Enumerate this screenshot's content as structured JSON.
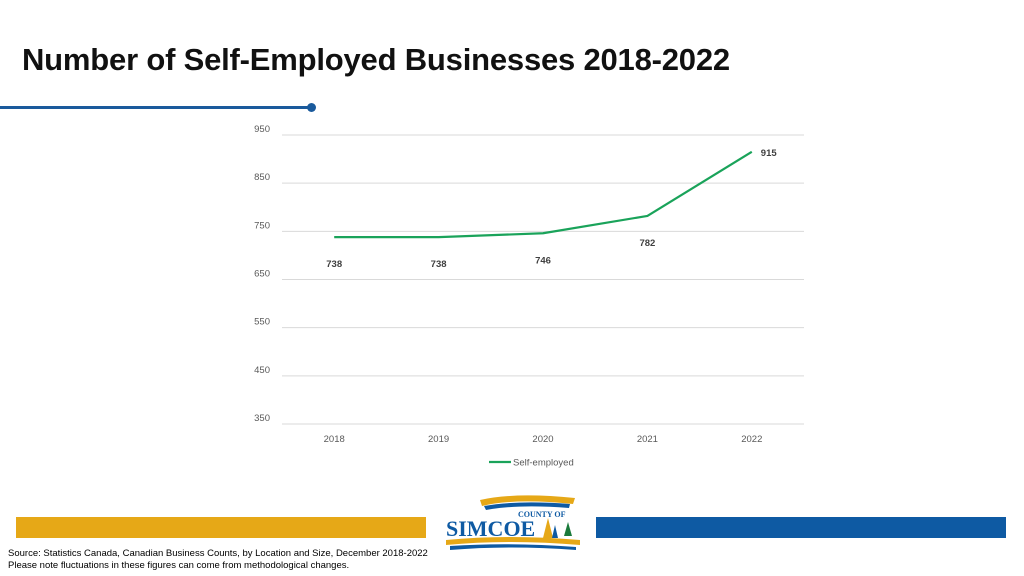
{
  "title": "Number of Self-Employed Businesses 2018-2022",
  "colors": {
    "accent_blue": "#1a5a9c",
    "footer_gold": "#e6a817",
    "footer_blue": "#0e5aa3",
    "series_green": "#1aa35a"
  },
  "logo": {
    "line1": "COUNTY OF",
    "line2": "SIMCOE"
  },
  "source": {
    "line1": "Source: Statistics Canada, Canadian Business Counts, by Location and Size, December 2018-2022",
    "line2": "Please note fluctuations in these figures can come from methodological changes."
  },
  "chart_data": {
    "type": "line",
    "categories": [
      "2018",
      "2019",
      "2020",
      "2021",
      "2022"
    ],
    "series": [
      {
        "name": "Self-employed",
        "values": [
          738,
          738,
          746,
          782,
          915
        ]
      }
    ],
    "ylim": [
      350,
      950
    ],
    "yticks": [
      350,
      450,
      550,
      650,
      750,
      850,
      950
    ],
    "title": "",
    "xlabel": "",
    "ylabel": "",
    "grid": true,
    "legend": "bottom"
  }
}
